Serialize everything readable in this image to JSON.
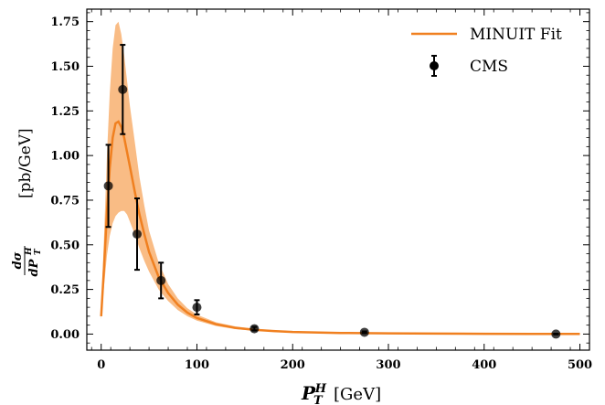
{
  "chart_data": {
    "type": "line",
    "x_axis": {
      "label_symbol": "P",
      "label_sub": "T",
      "label_sup": "H",
      "label_unit": "[GeV]",
      "range": [
        -15,
        510
      ],
      "ticks": [
        0,
        100,
        200,
        300,
        400,
        500
      ],
      "tick_labels": [
        "0",
        "100",
        "200",
        "300",
        "400",
        "500"
      ]
    },
    "y_axis": {
      "label_num": "dσ",
      "label_den": "dP",
      "label_den_sub": "T",
      "label_den_sup": "H",
      "label_unit": "[pb/GeV]",
      "range": [
        -0.09,
        1.82
      ],
      "ticks": [
        0.0,
        0.25,
        0.5,
        0.75,
        1.0,
        1.25,
        1.5,
        1.75
      ],
      "tick_labels": [
        "0.00",
        "0.25",
        "0.50",
        "0.75",
        "1.00",
        "1.25",
        "1.50",
        "1.75"
      ]
    },
    "series": [
      {
        "name": "MINUIT Fit",
        "kind": "line_with_band",
        "x": [
          0,
          3,
          6,
          9,
          12,
          15,
          18,
          21,
          24,
          27,
          30,
          35,
          40,
          45,
          50,
          60,
          70,
          80,
          90,
          100,
          120,
          140,
          160,
          180,
          200,
          250,
          300,
          350,
          400,
          450,
          500
        ],
        "y": [
          0.1,
          0.38,
          0.68,
          0.93,
          1.1,
          1.18,
          1.19,
          1.16,
          1.1,
          1.02,
          0.94,
          0.8,
          0.67,
          0.56,
          0.46,
          0.32,
          0.23,
          0.165,
          0.12,
          0.09,
          0.055,
          0.035,
          0.024,
          0.017,
          0.012,
          0.0065,
          0.004,
          0.0027,
          0.0019,
          0.0014,
          0.001
        ],
        "y_low": [
          0.08,
          0.27,
          0.44,
          0.55,
          0.62,
          0.66,
          0.68,
          0.69,
          0.69,
          0.67,
          0.63,
          0.56,
          0.48,
          0.41,
          0.35,
          0.25,
          0.185,
          0.135,
          0.1,
          0.075,
          0.045,
          0.028,
          0.019,
          0.013,
          0.009,
          0.005,
          0.003,
          0.002,
          0.0014,
          0.001,
          0.0007
        ],
        "y_high": [
          0.13,
          0.55,
          1.0,
          1.35,
          1.6,
          1.73,
          1.75,
          1.68,
          1.56,
          1.42,
          1.28,
          1.08,
          0.88,
          0.72,
          0.58,
          0.4,
          0.28,
          0.2,
          0.145,
          0.108,
          0.066,
          0.043,
          0.03,
          0.021,
          0.015,
          0.008,
          0.005,
          0.0034,
          0.0024,
          0.0018,
          0.0013
        ]
      },
      {
        "name": "CMS",
        "kind": "errorbar",
        "x": [
          7.5,
          22.5,
          37.5,
          62.5,
          100,
          160,
          275,
          475
        ],
        "y": [
          0.83,
          1.37,
          0.56,
          0.3,
          0.15,
          0.03,
          0.01,
          0.0
        ],
        "yerr": [
          0.23,
          0.25,
          0.2,
          0.1,
          0.04,
          0.01,
          0.005,
          0.002
        ]
      }
    ],
    "legend_position": "top-right",
    "colors": {
      "fit_line": "#f08020",
      "fit_band": "#f8b070",
      "points": "#000000"
    }
  }
}
